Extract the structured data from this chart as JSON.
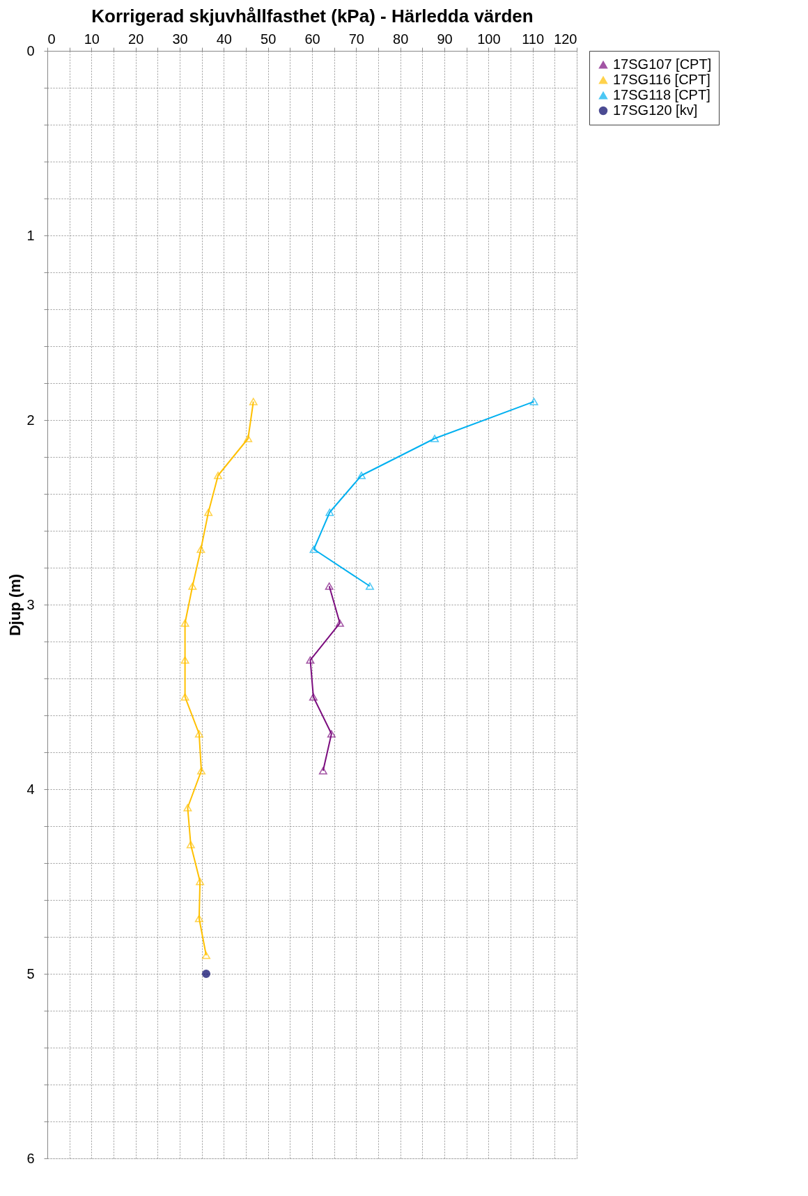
{
  "chart_data": {
    "type": "line",
    "xlabel": "Korrigerad skjuvhållfasthet (kPa) - Härledda värden",
    "ylabel": "Djup (m)",
    "xlim": [
      0,
      120
    ],
    "xticks": [
      0,
      {
        "value": 5,
        "label": null
      },
      10,
      {
        "value": 15,
        "label": null
      },
      20,
      {
        "value": 25,
        "label": null
      },
      30,
      {
        "value": 35,
        "label": null
      },
      40,
      {
        "value": 45,
        "label": null
      },
      50,
      {
        "value": 55,
        "label": null
      },
      60,
      {
        "value": 65,
        "label": null
      },
      70,
      {
        "value": 75,
        "label": null
      },
      80,
      {
        "value": 85,
        "label": null
      },
      90,
      {
        "value": 95,
        "label": null
      },
      100,
      {
        "value": 105,
        "label": null
      },
      110,
      {
        "value": 115,
        "label": null
      },
      120
    ],
    "ylim": [
      6,
      0
    ],
    "yticks": [
      0,
      {
        "value": 0.2,
        "label": null
      },
      {
        "value": 0.4,
        "label": null
      },
      {
        "value": 0.6,
        "label": null
      },
      {
        "value": 0.8,
        "label": null
      },
      1,
      {
        "value": 1.2,
        "label": null
      },
      {
        "value": 1.4,
        "label": null
      },
      {
        "value": 1.6,
        "label": null
      },
      {
        "value": 1.8,
        "label": null
      },
      2,
      {
        "value": 2.2,
        "label": null
      },
      {
        "value": 2.4,
        "label": null
      },
      {
        "value": 2.6,
        "label": null
      },
      {
        "value": 2.8,
        "label": null
      },
      3,
      {
        "value": 3.2,
        "label": null
      },
      {
        "value": 3.4,
        "label": null
      },
      {
        "value": 3.6,
        "label": null
      },
      {
        "value": 3.8,
        "label": null
      },
      4,
      {
        "value": 4.2,
        "label": null
      },
      {
        "value": 4.4,
        "label": null
      },
      {
        "value": 4.6,
        "label": null
      },
      {
        "value": 4.8,
        "label": null
      },
      5,
      {
        "value": 5.2,
        "label": null
      },
      {
        "value": 5.4,
        "label": null
      },
      {
        "value": 5.6,
        "label": null
      },
      {
        "value": 5.8,
        "label": null
      },
      6
    ],
    "grid": true,
    "legend": "right",
    "series": [
      {
        "name": "17SG107 [CPT]",
        "color": "#7b0c7e",
        "marker": "triangle",
        "x": [
          63.9,
          66.3,
          59.6,
          60.3,
          64.4,
          62.5
        ],
        "values": [
          2.9,
          3.1,
          3.3,
          3.5,
          3.7,
          3.9
        ]
      },
      {
        "name": "17SG116 [CPT]",
        "color": "#ffc000",
        "marker": "triangle",
        "x": [
          46.7,
          45.5,
          38.7,
          36.5,
          34.8,
          32.9,
          31.2,
          31.2,
          31.2,
          34.4,
          34.9,
          31.8,
          32.5,
          34.6,
          34.4,
          36.0
        ],
        "values": [
          1.9,
          2.1,
          2.3,
          2.5,
          2.7,
          2.9,
          3.1,
          3.3,
          3.5,
          3.7,
          3.9,
          4.1,
          4.3,
          4.5,
          4.7,
          4.9
        ]
      },
      {
        "name": "17SG118 [CPT]",
        "color": "#00b0f0",
        "marker": "triangle",
        "x": [
          110.3,
          87.8,
          71.2,
          64.0,
          60.4,
          73.1
        ],
        "values": [
          1.9,
          2.1,
          2.3,
          2.5,
          2.7,
          2.9
        ]
      },
      {
        "name": "17SG120 [kv]",
        "color": "#000066",
        "marker": "circle",
        "x": [
          36.0
        ],
        "values": [
          5.0
        ]
      }
    ]
  }
}
